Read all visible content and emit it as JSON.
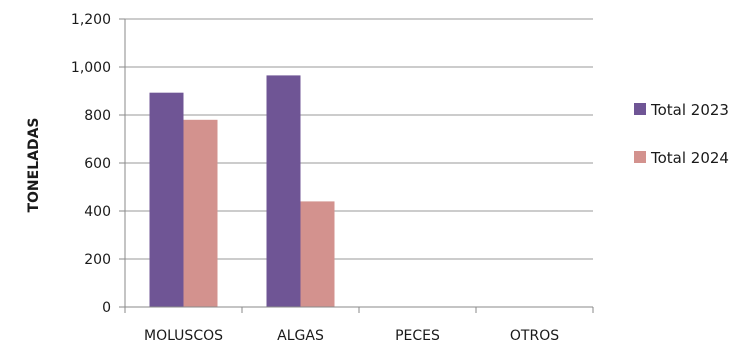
{
  "chart_data": {
    "type": "bar",
    "title": "",
    "xlabel": "",
    "ylabel": "TONELADAS",
    "categories": [
      "MOLUSCOS",
      "ALGAS",
      "PECES",
      "OTROS"
    ],
    "series": [
      {
        "name": "Total 2023",
        "color": "#6f5595",
        "values": [
          893,
          965,
          0,
          0
        ]
      },
      {
        "name": "Total 2024",
        "color": "#d3928e",
        "values": [
          780,
          440,
          0,
          0
        ]
      }
    ],
    "ylim": [
      0,
      1200
    ],
    "yticks": [
      "0",
      "200",
      "400",
      "600",
      "800",
      "1,000",
      "1,200"
    ],
    "ytick_values": [
      0,
      200,
      400,
      600,
      800,
      1000,
      1200
    ],
    "grid": true,
    "legend_position": "right"
  }
}
